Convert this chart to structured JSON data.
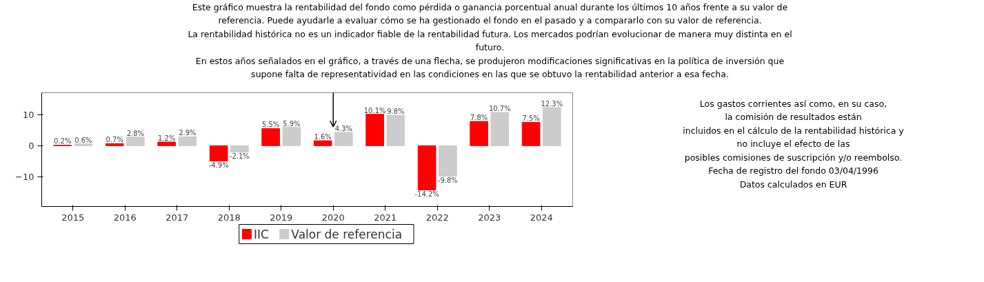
{
  "chart_data": {
    "type": "bar",
    "title": "Este gráfico muestra la rentabilidad del fondo como pérdida o ganancia porcentual anual durante los últimos 10 años frente a su valor de\nreferencia. Puede ayudarle a evaluar cómo se ha gestionado el fondo en el pasado y a compararlo con su valor de referencia.\nLa rentabilidad histórica no es un indicador fiable de la rentabilidad futura. Los mercados podrían evolucionar de manera muy distinta en el\nfuturo.\nEn estos años señalados en el gráfico, a través de una flecha, se produjeron modificaciones significativas en la política de inversión que\nsupone falta de representatividad en las condiciones en las que se obtuvo la rentabilidad anterior a esa fecha.",
    "categories": [
      "2015",
      "2016",
      "2017",
      "2018",
      "2019",
      "2020",
      "2021",
      "2022",
      "2023",
      "2024"
    ],
    "series": [
      {
        "name": "IIC",
        "color": "#ff0000",
        "values": [
          0.2,
          0.7,
          1.2,
          -4.9,
          5.5,
          1.6,
          10.1,
          -14.2,
          7.8,
          7.5
        ],
        "value_labels": [
          "0.2%",
          "0.7%",
          "1.2%",
          "-4.9%",
          "5.5%",
          "1.6%",
          "10.1%",
          "-14.2%",
          "7.8%",
          "7.5%"
        ]
      },
      {
        "name": "Valor de referencia",
        "color": "#cccccc",
        "values": [
          0.6,
          2.8,
          2.9,
          -2.1,
          5.9,
          4.3,
          9.8,
          -9.8,
          10.7,
          12.3
        ],
        "value_labels": [
          "0.6%",
          "2.8%",
          "2.9%",
          "-2.1%",
          "5.9%",
          "4.3%",
          "9.8%",
          "-9.8%",
          "10.7%",
          "12.3%"
        ]
      }
    ],
    "ylim": [
      -19.5,
      17
    ],
    "yticks": [
      -10,
      0,
      10
    ],
    "grid": false,
    "legend": "bottom",
    "ref_lines": [
      {
        "axis": "x",
        "value": "2020",
        "line_style": "solid"
      }
    ],
    "annotations": [
      "Los gastos corrientes así como, en su caso,\nla comisión de resultados están\nincluidos en el cálculo de la rentabilidad histórica y\nno incluye el efecto de las\nposibles comisiones de suscripción y/o reembolso.\nFecha de registro del fondo 03/04/1996\nDatos calculados en EUR"
    ]
  }
}
